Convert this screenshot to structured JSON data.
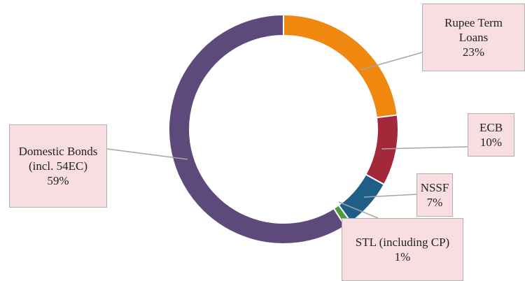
{
  "chart_data": {
    "type": "donut",
    "categories": [
      "Rupee Term Loans",
      "ECB",
      "NSSF",
      "STL (including CP)",
      "Domestic Bonds (incl. 54EC)"
    ],
    "values": [
      23,
      10,
      7,
      1,
      59
    ],
    "value_labels": [
      "23%",
      "10%",
      "7%",
      "1%",
      "59%"
    ],
    "colors": [
      "#f0870f",
      "#a3283a",
      "#1f5e86",
      "#4f9a3a",
      "#5e4a7a"
    ]
  }
}
